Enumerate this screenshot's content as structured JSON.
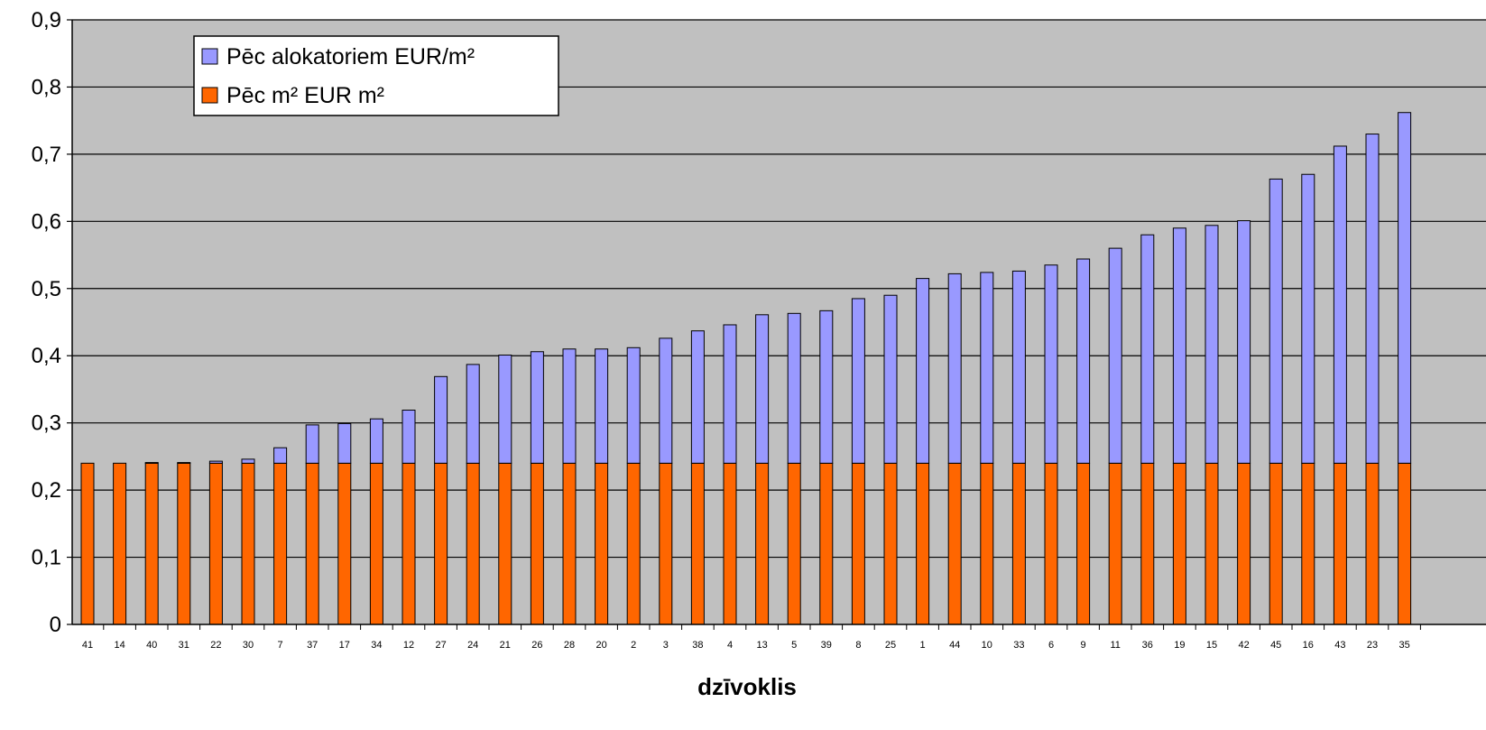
{
  "chart_data": {
    "type": "bar",
    "stacked": true,
    "xlabel": "dzīvoklis",
    "ylabel": "",
    "ylim": [
      0,
      0.9
    ],
    "ytick_labels": [
      "0",
      "0,1",
      "0,2",
      "0,3",
      "0,4",
      "0,5",
      "0,6",
      "0,7",
      "0,8",
      "0,9"
    ],
    "grid": true,
    "legend_position": "top-left",
    "categories": [
      "41",
      "14",
      "40",
      "31",
      "22",
      "30",
      "7",
      "37",
      "17",
      "34",
      "12",
      "27",
      "24",
      "21",
      "26",
      "28",
      "20",
      "2",
      "3",
      "38",
      "4",
      "13",
      "5",
      "39",
      "8",
      "25",
      "1",
      "44",
      "10",
      "33",
      "6",
      "9",
      "11",
      "36",
      "19",
      "15",
      "42",
      "45",
      "16",
      "43",
      "23",
      "35"
    ],
    "series": [
      {
        "name": "Pēc m² EUR m²",
        "color": "#ff6600",
        "values": [
          0.24,
          0.24,
          0.24,
          0.24,
          0.24,
          0.24,
          0.24,
          0.24,
          0.24,
          0.24,
          0.24,
          0.24,
          0.24,
          0.24,
          0.24,
          0.24,
          0.24,
          0.24,
          0.24,
          0.24,
          0.24,
          0.24,
          0.24,
          0.24,
          0.24,
          0.24,
          0.24,
          0.24,
          0.24,
          0.24,
          0.24,
          0.24,
          0.24,
          0.24,
          0.24,
          0.24,
          0.24,
          0.24,
          0.24,
          0.24,
          0.24,
          0.24
        ]
      },
      {
        "name": "Pēc alokatoriem EUR/m²",
        "color": "#9999ff",
        "values": [
          0.0,
          0.0,
          0.001,
          0.001,
          0.003,
          0.006,
          0.023,
          0.057,
          0.059,
          0.066,
          0.079,
          0.129,
          0.147,
          0.161,
          0.166,
          0.17,
          0.17,
          0.172,
          0.186,
          0.197,
          0.206,
          0.221,
          0.223,
          0.227,
          0.245,
          0.25,
          0.275,
          0.282,
          0.284,
          0.286,
          0.295,
          0.304,
          0.32,
          0.34,
          0.35,
          0.354,
          0.361,
          0.423,
          0.43,
          0.472,
          0.49,
          0.522
        ]
      }
    ]
  }
}
